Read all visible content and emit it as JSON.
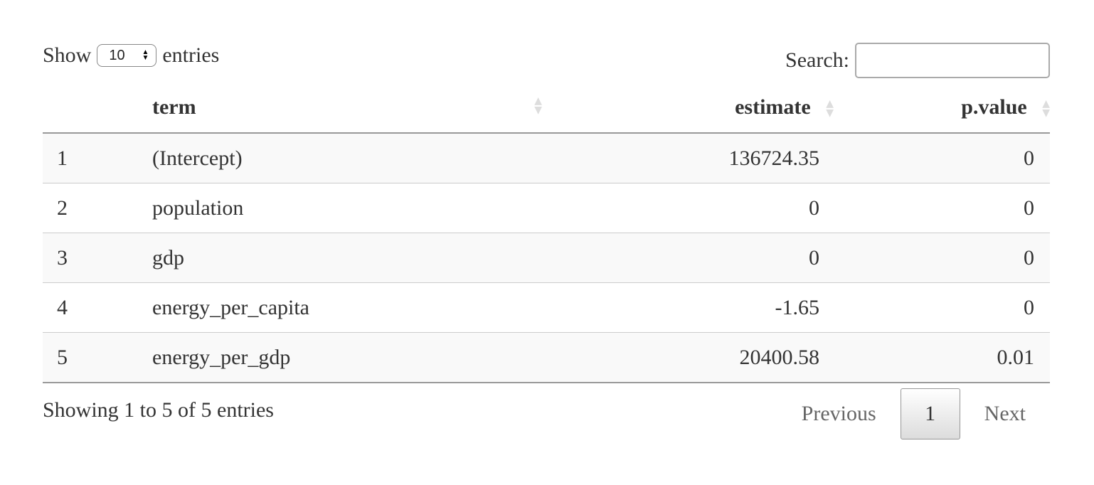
{
  "length_control": {
    "prefix": "Show",
    "selected": "10",
    "suffix": "entries"
  },
  "search": {
    "label": "Search:",
    "value": "",
    "placeholder": ""
  },
  "table": {
    "columns": [
      "",
      "term",
      "estimate",
      "p.value"
    ],
    "rows": [
      {
        "index": "1",
        "term": "(Intercept)",
        "estimate": "136724.35",
        "p_value": "0"
      },
      {
        "index": "2",
        "term": "population",
        "estimate": "0",
        "p_value": "0"
      },
      {
        "index": "3",
        "term": "gdp",
        "estimate": "0",
        "p_value": "0"
      },
      {
        "index": "4",
        "term": "energy_per_capita",
        "estimate": "-1.65",
        "p_value": "0"
      },
      {
        "index": "5",
        "term": "energy_per_gdp",
        "estimate": "20400.58",
        "p_value": "0.01"
      }
    ]
  },
  "footer": {
    "info": "Showing 1 to 5 of 5 entries",
    "previous": "Previous",
    "current_page": "1",
    "next": "Next"
  }
}
